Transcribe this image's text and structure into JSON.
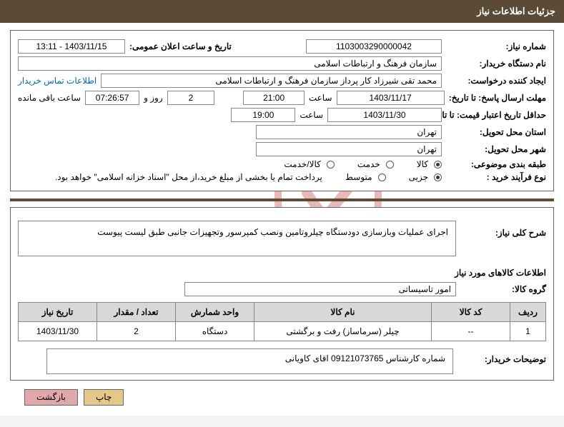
{
  "header": {
    "title": "جزئیات اطلاعات نیاز"
  },
  "fields": {
    "need_no_label": "شماره نیاز:",
    "need_no": "1103003290000042",
    "announce_label": "تاریخ و ساعت اعلان عمومی:",
    "announce_value": "1403/11/15 - 13:11",
    "buyer_org_label": "نام دستگاه خریدار:",
    "buyer_org": "سازمان فرهنگ و ارتباطات اسلامی",
    "requester_label": "ایجاد کننده درخواست:",
    "requester": "محمد تقی شیرزاد کار پرداز  سازمان فرهنگ و ارتباطات اسلامی",
    "contact_link": "اطلاعات تماس خریدار",
    "reply_deadline_label": "مهلت ارسال پاسخ: تا تاریخ:",
    "reply_date": "1403/11/17",
    "hour_label": "ساعت",
    "reply_hour": "21:00",
    "days_remaining": "2",
    "days_word": "روز و",
    "time_remaining": "07:26:57",
    "remaining_word": "ساعت باقی مانده",
    "price_valid_label": "حداقل تاریخ اعتبار قیمت: تا تاریخ:",
    "price_valid_date": "1403/11/30",
    "price_valid_hour": "19:00",
    "province_label": "استان محل تحویل:",
    "province": "تهران",
    "city_label": "شهر محل تحویل:",
    "city": "تهران",
    "category_label": "طبقه بندی موضوعی:",
    "cat_goods": "کالا",
    "cat_service": "خدمت",
    "cat_both": "کالا/خدمت",
    "buy_type_label": "نوع فرآیند خرید :",
    "buy_partial": "جزیی",
    "buy_medium": "متوسط",
    "pay_note": "پرداخت تمام یا بخشی از مبلغ خرید،از محل \"اسناد خزانه اسلامی\" خواهد بود."
  },
  "desc": {
    "label": "شرح کلی نیاز:",
    "text": "اجرای عملیات وبازسازی دودستگاه چیلروتامین ونصب کمپرسور وتجهیزات جانبی طبق لیست پیوست"
  },
  "goods_section_title": "اطلاعات کالاهای مورد نیاز",
  "goods_group_label": "گروه کالا:",
  "goods_group": "امور تاسیساتی",
  "table": {
    "headers": [
      "ردیف",
      "کد کالا",
      "نام کالا",
      "واحد شمارش",
      "تعداد / مقدار",
      "تاریخ نیاز"
    ],
    "rows": [
      [
        "1",
        "--",
        "چیلر (سرماساز) رفت و برگشتی",
        "دستگاه",
        "2",
        "1403/11/30"
      ]
    ],
    "col_widths": [
      "50px",
      "110px",
      "",
      "110px",
      "110px",
      "110px"
    ]
  },
  "buyer_note_label": "توضیحات خریدار:",
  "buyer_note": "شماره کارشناس 09121073765 اقای کاویانی",
  "buttons": {
    "print": "چاپ",
    "back": "بازگشت"
  },
  "watermark": {
    "text": "AriaTender.net",
    "shield_stroke": "#c23b2e",
    "shield_stroke_width": 10
  },
  "colors": {
    "header_bg": "#5b4a35",
    "header_fg": "#ffffff",
    "sep": "#5f4a35",
    "th_bg": "#d8d8d8",
    "btn_print_bg": "#e6c78a",
    "btn_back_bg": "#e0a8a8",
    "link": "#0066cc",
    "border": "#888888"
  }
}
